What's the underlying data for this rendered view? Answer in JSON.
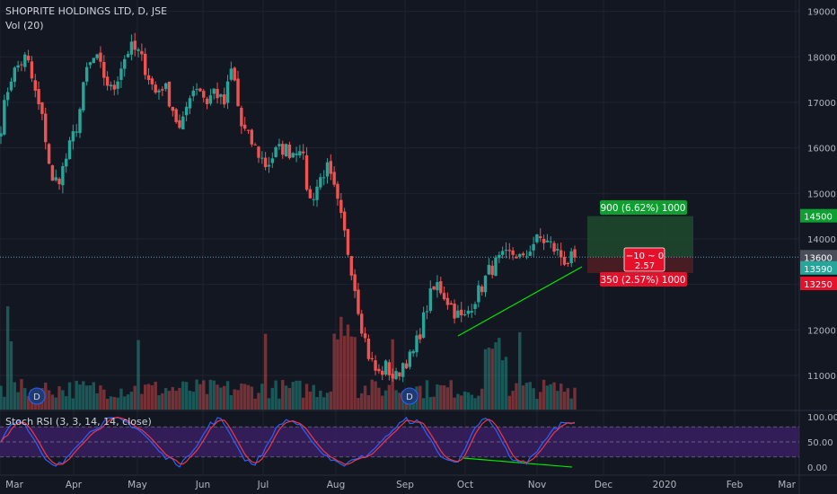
{
  "header": {
    "symbol_line": "SHOPRITE HOLDINGS LTD, D, JSE",
    "volume_label": "Vol (20)",
    "indicator_label": "Stoch RSI (3, 3, 14, 14, close)"
  },
  "colors": {
    "background": "#131722",
    "up": "#26a69a",
    "down": "#ef5350",
    "trendline": "#00e600",
    "target_zone": "#1e4a2e",
    "stop_zone": "#4a1e24",
    "k_line": "#2962ff",
    "d_line": "#f23645",
    "band": "#3a1f63"
  },
  "axis": {
    "price_ticks": [
      "19000",
      "18000",
      "17000",
      "16000",
      "15000",
      "14000",
      "13000",
      "12000",
      "11000"
    ],
    "price_min": 10250,
    "price_max": 19250,
    "time_labels": [
      "Mar",
      "Apr",
      "May",
      "Jun",
      "Jul",
      "Aug",
      "Sep",
      "Oct",
      "Nov",
      "Dec",
      "2020",
      "Feb",
      "Mar"
    ],
    "rsi_ticks": [
      "100.00",
      "50.00",
      "0.00"
    ]
  },
  "price_badges": {
    "target": "14500",
    "current": "13600",
    "last": "13590",
    "stop": "13250"
  },
  "position_tool": {
    "target_label": "900 (6.62%) 1000",
    "stop_label": "350 (2.57%) 1000",
    "center_line1": "−10 ~ 0",
    "center_line2": "2.57",
    "entry": 13600,
    "target": 14500,
    "stop": 13250
  },
  "markers": {
    "dividend_icon": "D"
  },
  "chart_data": {
    "type": "candlestick",
    "title": "SHOPRITE HOLDINGS LTD, D, JSE",
    "close_anchors": [
      [
        "Mar",
        16500
      ],
      [
        "",
        17500
      ],
      [
        "",
        17800
      ],
      [
        "",
        18000
      ],
      [
        "",
        17200
      ],
      [
        "",
        16500
      ],
      [
        "",
        15200
      ],
      [
        "",
        15400
      ],
      [
        "Apr",
        16000
      ],
      [
        "",
        16600
      ],
      [
        "",
        17700
      ],
      [
        "",
        18000
      ],
      [
        "",
        17600
      ],
      [
        "",
        17200
      ],
      [
        "",
        17800
      ],
      [
        "",
        18200
      ],
      [
        "May",
        18100
      ],
      [
        "",
        17700
      ],
      [
        "",
        17200
      ],
      [
        "",
        17400
      ],
      [
        "",
        16900
      ],
      [
        "",
        16300
      ],
      [
        "",
        17200
      ],
      [
        "",
        17400
      ],
      [
        "Jun",
        17000
      ],
      [
        "",
        17300
      ],
      [
        "",
        16900
      ],
      [
        "",
        17800
      ],
      [
        "",
        16500
      ],
      [
        "",
        16200
      ],
      [
        "",
        15900
      ],
      [
        "",
        15600
      ],
      [
        "Jul",
        15900
      ],
      [
        "",
        16000
      ],
      [
        "",
        15900
      ],
      [
        "",
        16100
      ],
      [
        "",
        14800
      ],
      [
        "",
        15200
      ],
      [
        "",
        15600
      ],
      [
        "",
        15000
      ],
      [
        "Aug",
        14200
      ],
      [
        "",
        13300
      ],
      [
        "",
        12200
      ],
      [
        "",
        11400
      ],
      [
        "",
        11000
      ],
      [
        "",
        11200
      ],
      [
        "",
        10900
      ],
      [
        "",
        11300
      ],
      [
        "Sep",
        11400
      ],
      [
        "",
        12000
      ],
      [
        "",
        12700
      ],
      [
        "",
        13000
      ],
      [
        "",
        12700
      ],
      [
        "",
        12400
      ],
      [
        "",
        12200
      ],
      [
        "",
        12600
      ],
      [
        "Oct",
        12900
      ],
      [
        "",
        13300
      ],
      [
        "",
        13500
      ],
      [
        "",
        13600
      ],
      [
        "",
        13700
      ],
      [
        "",
        13500
      ],
      [
        "",
        13900
      ],
      [
        "",
        14000
      ],
      [
        "Nov",
        13900
      ],
      [
        "",
        13700
      ],
      [
        "",
        13500
      ],
      [
        "",
        13590
      ]
    ],
    "rsi_range": [
      0,
      100
    ],
    "rsi_band": [
      20,
      80
    ]
  }
}
